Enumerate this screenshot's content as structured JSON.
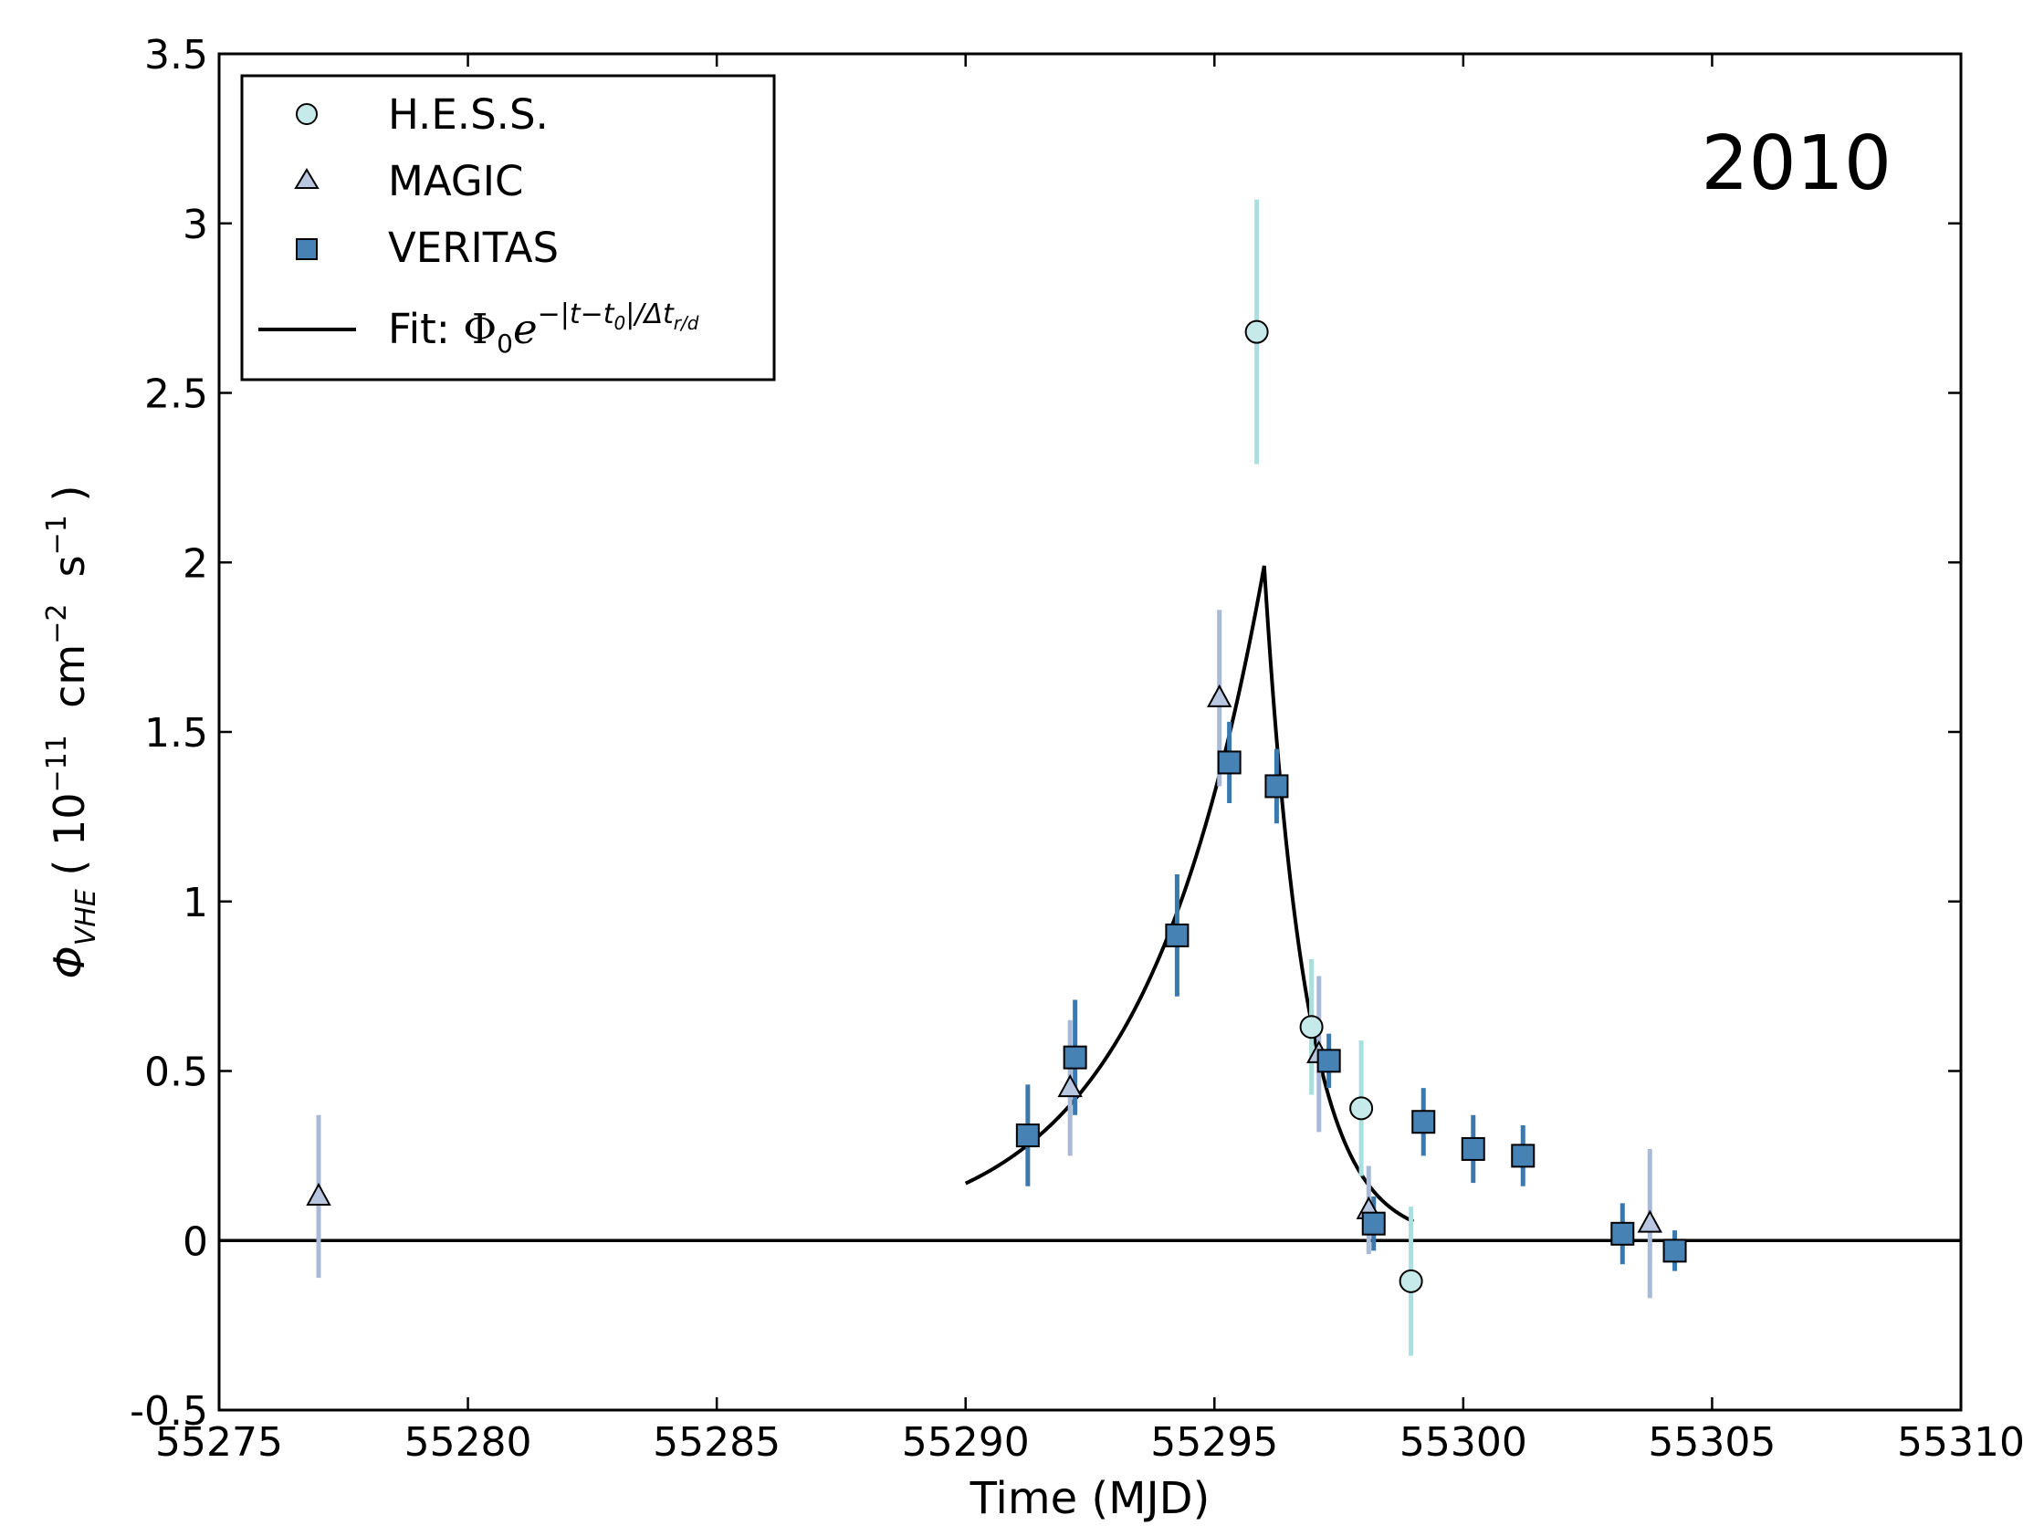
{
  "chart_data": {
    "type": "scatter",
    "title": "",
    "annotation": "2010",
    "xlabel": "Time (MJD)",
    "ylabel": {
      "symbol": "Φ",
      "subscript": "VHE",
      "unit_open": "( 10",
      "exp1": "−11",
      "unit_mid": "cm",
      "exp2": "−2",
      "unit_s": "s",
      "exp3": "−1",
      "unit_close": ")"
    },
    "xlim": [
      55275,
      55310
    ],
    "ylim": [
      -0.5,
      3.5
    ],
    "xticks": [
      "55275",
      "55280",
      "55285",
      "55290",
      "55295",
      "55300",
      "55305",
      "55310"
    ],
    "yticks": [
      "-0.5",
      "0",
      "0.5",
      "1",
      "1.5",
      "2",
      "2.5",
      "3",
      "3.5"
    ],
    "series": [
      {
        "name": "H.E.S.S.",
        "marker": "circle",
        "color": "#c6e9e9",
        "errcolor": "#a9dfdf",
        "points": [
          {
            "x": 55295.85,
            "y": 2.68,
            "err": 0.39
          },
          {
            "x": 55296.95,
            "y": 0.63,
            "err": 0.2
          },
          {
            "x": 55297.95,
            "y": 0.39,
            "err": 0.2
          },
          {
            "x": 55298.95,
            "y": -0.12,
            "err": 0.22
          }
        ]
      },
      {
        "name": "MAGIC",
        "marker": "triangle",
        "color": "#b8c6e0",
        "errcolor": "#a8bad8",
        "points": [
          {
            "x": 55277.0,
            "y": 0.13,
            "err": 0.24
          },
          {
            "x": 55292.1,
            "y": 0.45,
            "err": 0.2
          },
          {
            "x": 55295.1,
            "y": 1.6,
            "err": 0.26
          },
          {
            "x": 55297.1,
            "y": 0.55,
            "err": 0.23
          },
          {
            "x": 55298.1,
            "y": 0.09,
            "err": 0.13
          },
          {
            "x": 55303.75,
            "y": 0.05,
            "err": 0.22
          }
        ]
      },
      {
        "name": "VERITAS",
        "marker": "square",
        "color": "#4682b4",
        "errcolor": "#3a78b0",
        "points": [
          {
            "x": 55291.25,
            "y": 0.31,
            "err": 0.15
          },
          {
            "x": 55292.2,
            "y": 0.54,
            "err": 0.17
          },
          {
            "x": 55294.25,
            "y": 0.9,
            "err": 0.18
          },
          {
            "x": 55295.3,
            "y": 1.41,
            "err": 0.12
          },
          {
            "x": 55296.25,
            "y": 1.34,
            "err": 0.11
          },
          {
            "x": 55297.3,
            "y": 0.53,
            "err": 0.08
          },
          {
            "x": 55298.2,
            "y": 0.05,
            "err": 0.08
          },
          {
            "x": 55299.2,
            "y": 0.35,
            "err": 0.1
          },
          {
            "x": 55300.2,
            "y": 0.27,
            "err": 0.1
          },
          {
            "x": 55301.2,
            "y": 0.25,
            "err": 0.09
          },
          {
            "x": 55303.2,
            "y": 0.02,
            "err": 0.09
          },
          {
            "x": 55304.25,
            "y": -0.03,
            "err": 0.06
          }
        ]
      }
    ],
    "fit": {
      "label_prefix": "Fit: ",
      "label_phi": "Φ",
      "label_sub": "0",
      "label_e": "e",
      "label_exp": "−|t−t",
      "label_exp_sub": "0",
      "label_exp_rest": "|/Δt",
      "label_exp_sub2": "r/d",
      "phi0": 1.99,
      "t0": 55296.0,
      "tau_rise": 2.43,
      "tau_decay": 0.84,
      "x_range": [
        55290.0,
        55299.0
      ],
      "color": "#000000"
    },
    "baseline": 0,
    "legend": {
      "placement": "top-left",
      "entries": [
        "H.E.S.S.",
        "MAGIC",
        "VERITAS",
        "Fit"
      ]
    }
  }
}
